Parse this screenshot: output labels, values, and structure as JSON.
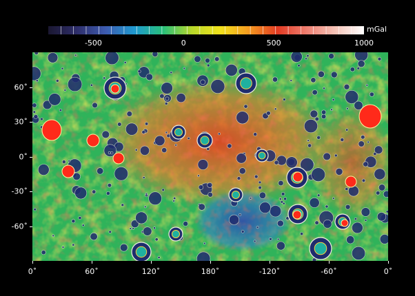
{
  "colorbar": {
    "unit": "mGal",
    "ticks": [
      {
        "label": "-500",
        "value": -500
      },
      {
        "label": "0",
        "value": 0
      },
      {
        "label": "500",
        "value": 500
      },
      {
        "label": "1000",
        "value": 1000
      }
    ],
    "range": [
      -750,
      1000
    ],
    "colors": [
      "#1a1730",
      "#2e2e6a",
      "#3d5bb0",
      "#1f9ad0",
      "#28c07a",
      "#b8d82a",
      "#f2e21c",
      "#f59a20",
      "#e23a22",
      "#ee7e70",
      "#f6c4b8",
      "#ffffff"
    ]
  },
  "map": {
    "projection": "lon-lat grid",
    "lat_labels": [
      {
        "label": "60˚",
        "value": 60
      },
      {
        "label": "30˚",
        "value": 30
      },
      {
        "label": "0˚",
        "value": 0
      },
      {
        "label": "-30˚",
        "value": -30
      },
      {
        "label": "-60˚",
        "value": -60
      }
    ],
    "lon_labels": [
      {
        "label": "0˚",
        "value": 0
      },
      {
        "label": "60˚",
        "value": 60
      },
      {
        "label": "120˚",
        "value": 120
      },
      {
        "label": "180˚",
        "value": 180
      },
      {
        "label": "-120˚",
        "value": 240
      },
      {
        "label": "-60˚",
        "value": 300
      },
      {
        "label": "0˚",
        "value": 360
      }
    ],
    "lat_range": [
      -90,
      90
    ],
    "lon_range": [
      0,
      360
    ],
    "background_color": "#2fb35a",
    "basin_color": "#1e2c6e",
    "mascon_color": "#ff2a1a"
  }
}
